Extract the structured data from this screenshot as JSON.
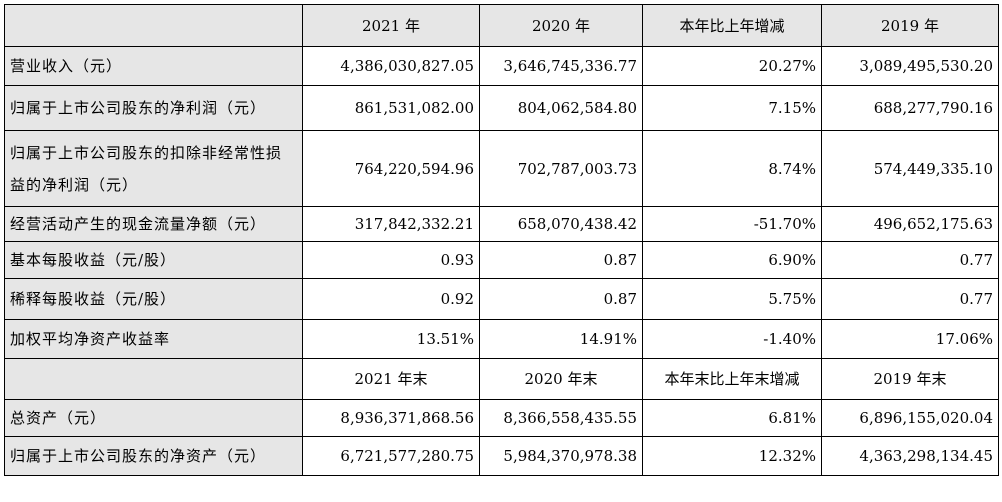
{
  "header1": {
    "corner": "",
    "col1": "2021 年",
    "col2": "2020 年",
    "col3": "本年比上年增减",
    "col4": "2019 年"
  },
  "rows1": [
    {
      "label": "营业收入（元）",
      "v2021": "4,386,030,827.05",
      "v2020": "3,646,745,336.77",
      "change": "20.27%",
      "v2019": "3,089,495,530.20"
    },
    {
      "label": "归属于上市公司股东的净利润（元）",
      "v2021": "861,531,082.00",
      "v2020": "804,062,584.80",
      "change": "7.15%",
      "v2019": "688,277,790.16"
    },
    {
      "label": "归属于上市公司股东的扣除非经常性损益的净利润（元）",
      "v2021": "764,220,594.96",
      "v2020": "702,787,003.73",
      "change": "8.74%",
      "v2019": "574,449,335.10"
    },
    {
      "label": "经营活动产生的现金流量净额（元）",
      "v2021": "317,842,332.21",
      "v2020": "658,070,438.42",
      "change": "-51.70%",
      "v2019": "496,652,175.63"
    },
    {
      "label": "基本每股收益（元/股）",
      "v2021": "0.93",
      "v2020": "0.87",
      "change": "6.90%",
      "v2019": "0.77"
    },
    {
      "label": "稀释每股收益（元/股）",
      "v2021": "0.92",
      "v2020": "0.87",
      "change": "5.75%",
      "v2019": "0.77"
    },
    {
      "label": "加权平均净资产收益率",
      "v2021": "13.51%",
      "v2020": "14.91%",
      "change": "-1.40%",
      "v2019": "17.06%"
    }
  ],
  "header2": {
    "corner": "",
    "col1": "2021 年末",
    "col2": "2020 年末",
    "col3": "本年末比上年末增减",
    "col4": "2019 年末"
  },
  "rows2": [
    {
      "label": "总资产（元）",
      "v2021": "8,936,371,868.56",
      "v2020": "8,366,558,435.55",
      "change": "6.81%",
      "v2019": "6,896,155,020.04"
    },
    {
      "label": "归属于上市公司股东的净资产（元）",
      "v2021": "6,721,577,280.75",
      "v2020": "5,984,370,978.38",
      "change": "12.32%",
      "v2019": "4,363,298,134.45"
    }
  ],
  "colors": {
    "header_background": "#e6e6e6",
    "label_background": "#e6e6e6",
    "border": "#000000"
  }
}
